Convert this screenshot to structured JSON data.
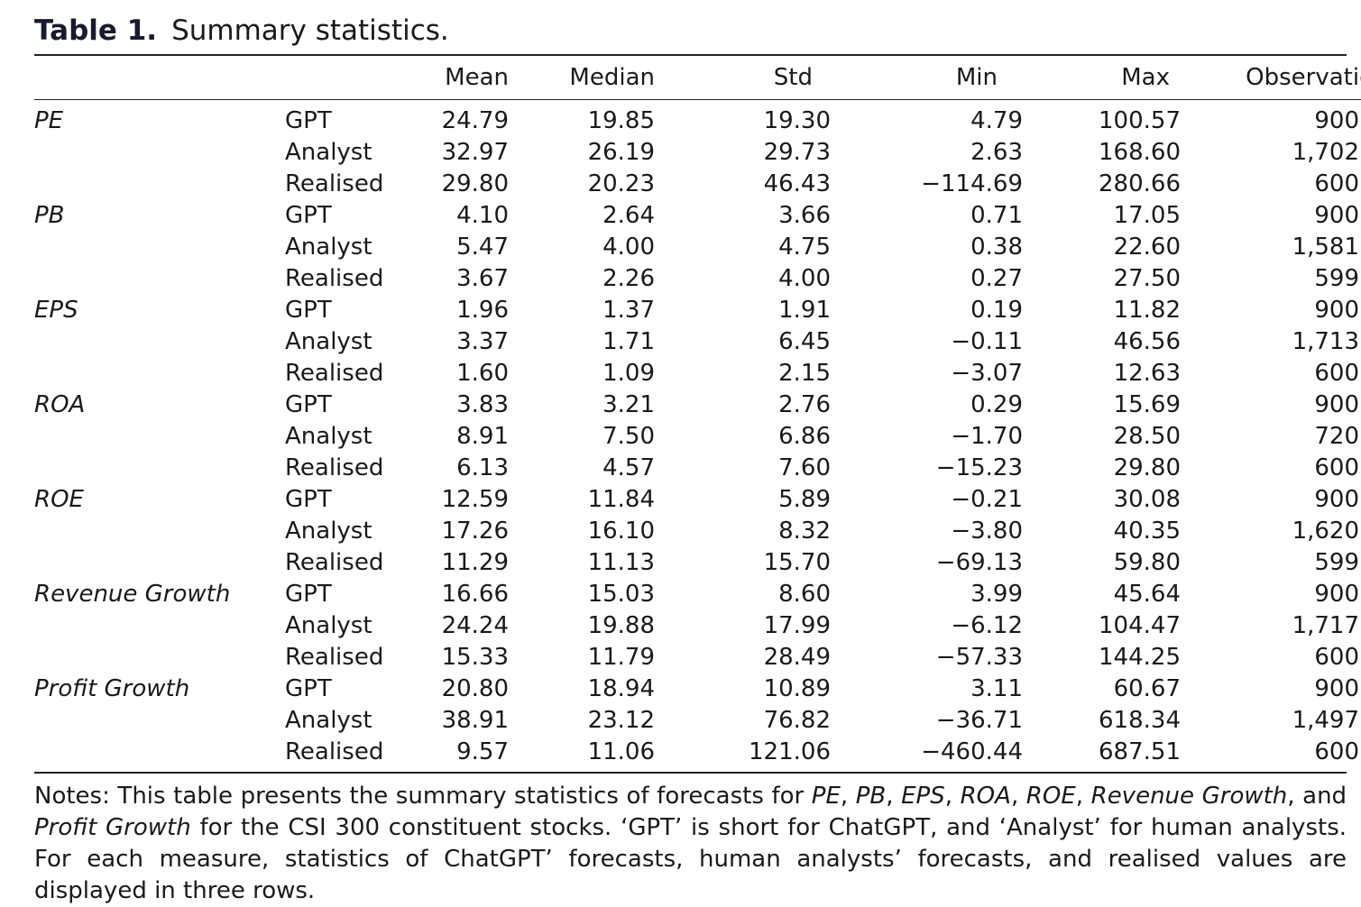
{
  "caption": {
    "label": "Table 1.",
    "title": "Summary statistics."
  },
  "columns": [
    "Mean",
    "Median",
    "Std",
    "Min",
    "Max",
    "Observations"
  ],
  "rows": [
    {
      "measure": "PE",
      "source": "GPT",
      "values": [
        "24.79",
        "19.85",
        "19.30",
        "4.79",
        "100.57",
        "900"
      ]
    },
    {
      "measure": "",
      "source": "Analyst",
      "values": [
        "32.97",
        "26.19",
        "29.73",
        "2.63",
        "168.60",
        "1,702"
      ]
    },
    {
      "measure": "",
      "source": "Realised",
      "values": [
        "29.80",
        "20.23",
        "46.43",
        "−114.69",
        "280.66",
        "600"
      ]
    },
    {
      "measure": "PB",
      "source": "GPT",
      "values": [
        "4.10",
        "2.64",
        "3.66",
        "0.71",
        "17.05",
        "900"
      ]
    },
    {
      "measure": "",
      "source": "Analyst",
      "values": [
        "5.47",
        "4.00",
        "4.75",
        "0.38",
        "22.60",
        "1,581"
      ]
    },
    {
      "measure": "",
      "source": "Realised",
      "values": [
        "3.67",
        "2.26",
        "4.00",
        "0.27",
        "27.50",
        "599"
      ]
    },
    {
      "measure": "EPS",
      "source": "GPT",
      "values": [
        "1.96",
        "1.37",
        "1.91",
        "0.19",
        "11.82",
        "900"
      ]
    },
    {
      "measure": "",
      "source": "Analyst",
      "values": [
        "3.37",
        "1.71",
        "6.45",
        "−0.11",
        "46.56",
        "1,713"
      ]
    },
    {
      "measure": "",
      "source": "Realised",
      "values": [
        "1.60",
        "1.09",
        "2.15",
        "−3.07",
        "12.63",
        "600"
      ]
    },
    {
      "measure": "ROA",
      "source": "GPT",
      "values": [
        "3.83",
        "3.21",
        "2.76",
        "0.29",
        "15.69",
        "900"
      ]
    },
    {
      "measure": "",
      "source": "Analyst",
      "values": [
        "8.91",
        "7.50",
        "6.86",
        "−1.70",
        "28.50",
        "720"
      ]
    },
    {
      "measure": "",
      "source": "Realised",
      "values": [
        "6.13",
        "4.57",
        "7.60",
        "−15.23",
        "29.80",
        "600"
      ]
    },
    {
      "measure": "ROE",
      "source": "GPT",
      "values": [
        "12.59",
        "11.84",
        "5.89",
        "−0.21",
        "30.08",
        "900"
      ]
    },
    {
      "measure": "",
      "source": "Analyst",
      "values": [
        "17.26",
        "16.10",
        "8.32",
        "−3.80",
        "40.35",
        "1,620"
      ]
    },
    {
      "measure": "",
      "source": "Realised",
      "values": [
        "11.29",
        "11.13",
        "15.70",
        "−69.13",
        "59.80",
        "599"
      ]
    },
    {
      "measure": "Revenue Growth",
      "source": "GPT",
      "values": [
        "16.66",
        "15.03",
        "8.60",
        "3.99",
        "45.64",
        "900"
      ]
    },
    {
      "measure": "",
      "source": "Analyst",
      "values": [
        "24.24",
        "19.88",
        "17.99",
        "−6.12",
        "104.47",
        "1,717"
      ]
    },
    {
      "measure": "",
      "source": "Realised",
      "values": [
        "15.33",
        "11.79",
        "28.49",
        "−57.33",
        "144.25",
        "600"
      ]
    },
    {
      "measure": "Profit Growth",
      "source": "GPT",
      "values": [
        "20.80",
        "18.94",
        "10.89",
        "3.11",
        "60.67",
        "900"
      ]
    },
    {
      "measure": "",
      "source": "Analyst",
      "values": [
        "38.91",
        "23.12",
        "76.82",
        "−36.71",
        "618.34",
        "1,497"
      ]
    },
    {
      "measure": "",
      "source": "Realised",
      "values": [
        "9.57",
        "11.06",
        "121.06",
        "−460.44",
        "687.51",
        "600"
      ]
    }
  ],
  "notes": [
    {
      "text": "Notes: This table presents the summary statistics of forecasts for ",
      "italic": false
    },
    {
      "text": "PE",
      "italic": true
    },
    {
      "text": ", ",
      "italic": false
    },
    {
      "text": "PB",
      "italic": true
    },
    {
      "text": ", ",
      "italic": false
    },
    {
      "text": "EPS",
      "italic": true
    },
    {
      "text": ", ",
      "italic": false
    },
    {
      "text": "ROA",
      "italic": true
    },
    {
      "text": ", ",
      "italic": false
    },
    {
      "text": "ROE",
      "italic": true
    },
    {
      "text": ", ",
      "italic": false
    },
    {
      "text": "Revenue Growth",
      "italic": true
    },
    {
      "text": ", and ",
      "italic": false
    },
    {
      "text": "Profit Growth",
      "italic": true
    },
    {
      "text": " for the CSI 300 constituent stocks. ‘GPT’ is short for ChatGPT, and ‘Analyst’ for human analysts. For each measure, statistics of ChatGPT’ forecasts, human analysts’ forecasts, and realised values are displayed in three rows.",
      "italic": false
    }
  ]
}
